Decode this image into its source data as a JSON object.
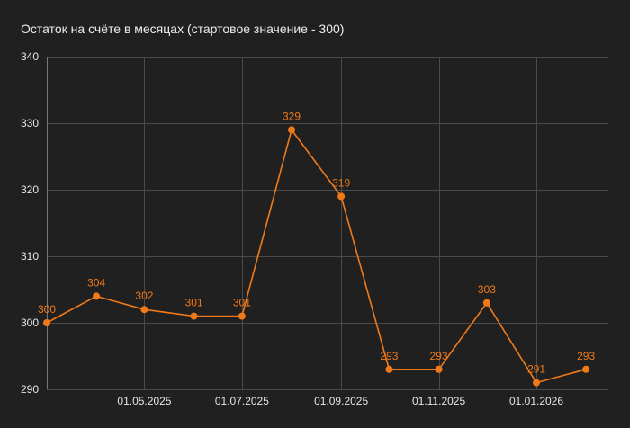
{
  "chart_data": {
    "type": "line",
    "title": "Остаток на счёте в месяцах (стартовое значение - 300)",
    "xlabel": "",
    "ylabel": "",
    "ylim": [
      290,
      340
    ],
    "yticks": [
      290,
      300,
      310,
      320,
      330,
      340
    ],
    "xticks": [
      "01.05.2025",
      "01.07.2025",
      "01.09.2025",
      "01.11.2025",
      "01.01.2026"
    ],
    "grid": true,
    "legend": "none",
    "color": "#f07a1a",
    "series": [
      {
        "x": [
          "2025-03-01",
          "2025-04-01",
          "2025-05-01",
          "2025-06-01",
          "2025-07-01",
          "2025-08-01",
          "2025-09-01",
          "2025-10-01",
          "2025-11-01",
          "2025-12-01",
          "2026-01-01",
          "2026-02-01"
        ],
        "values": [
          300,
          304,
          302,
          301,
          301,
          329,
          319,
          293,
          293,
          303,
          291,
          293
        ],
        "data_labels": [
          "300",
          "304",
          "302",
          "301",
          "301",
          "329",
          "319",
          "293",
          "293",
          "303",
          "291",
          "293"
        ]
      }
    ]
  }
}
